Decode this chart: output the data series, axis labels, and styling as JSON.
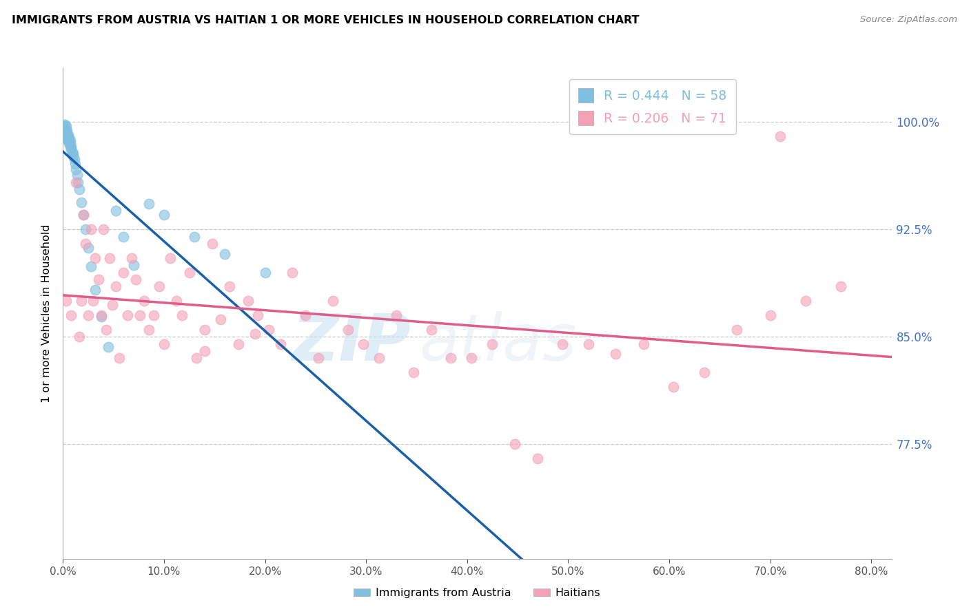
{
  "title": "IMMIGRANTS FROM AUSTRIA VS HAITIAN 1 OR MORE VEHICLES IN HOUSEHOLD CORRELATION CHART",
  "source": "Source: ZipAtlas.com",
  "ylabel": "1 or more Vehicles in Household",
  "legend_austria": "Immigrants from Austria",
  "legend_haitian": "Haitians",
  "r_austria": 0.444,
  "n_austria": 58,
  "r_haitian": 0.206,
  "n_haitian": 71,
  "color_austria": "#7fbfdf",
  "color_haitian": "#f4a0b5",
  "line_color_austria": "#1a5fa8",
  "line_color_haitian": "#e05c8a",
  "tick_color_right": "#4472c4",
  "xlim": [
    0.0,
    0.82
  ],
  "ylim": [
    0.695,
    1.038
  ],
  "ytick_vals": [
    0.775,
    0.85,
    0.925,
    1.0
  ],
  "xtick_vals": [
    0.0,
    0.1,
    0.2,
    0.3,
    0.4,
    0.5,
    0.6,
    0.7,
    0.8
  ],
  "watermark_text": "ZIPatlas",
  "austria_x": [
    0.001,
    0.001,
    0.001,
    0.001,
    0.001,
    0.002,
    0.002,
    0.002,
    0.002,
    0.002,
    0.002,
    0.002,
    0.002,
    0.003,
    0.003,
    0.003,
    0.003,
    0.003,
    0.004,
    0.004,
    0.004,
    0.004,
    0.005,
    0.005,
    0.005,
    0.006,
    0.006,
    0.006,
    0.007,
    0.007,
    0.007,
    0.008,
    0.008,
    0.009,
    0.01,
    0.01,
    0.011,
    0.012,
    0.013,
    0.014,
    0.015,
    0.016,
    0.018,
    0.02,
    0.022,
    0.025,
    0.028,
    0.032,
    0.038,
    0.045,
    0.052,
    0.06,
    0.07,
    0.085,
    0.1,
    0.13,
    0.16,
    0.2
  ],
  "austria_y": [
    0.99,
    0.992,
    0.993,
    0.994,
    0.995,
    0.989,
    0.991,
    0.992,
    0.993,
    0.995,
    0.996,
    0.997,
    0.998,
    0.99,
    0.992,
    0.993,
    0.995,
    0.997,
    0.988,
    0.99,
    0.992,
    0.994,
    0.987,
    0.989,
    0.991,
    0.985,
    0.987,
    0.989,
    0.983,
    0.985,
    0.987,
    0.981,
    0.983,
    0.979,
    0.976,
    0.978,
    0.974,
    0.971,
    0.967,
    0.963,
    0.958,
    0.953,
    0.944,
    0.935,
    0.925,
    0.912,
    0.899,
    0.883,
    0.864,
    0.843,
    0.938,
    0.92,
    0.9,
    0.943,
    0.935,
    0.92,
    0.908,
    0.895
  ],
  "haitian_x": [
    0.003,
    0.008,
    0.013,
    0.016,
    0.018,
    0.02,
    0.022,
    0.025,
    0.028,
    0.03,
    0.032,
    0.035,
    0.038,
    0.04,
    0.043,
    0.046,
    0.049,
    0.052,
    0.056,
    0.06,
    0.064,
    0.068,
    0.072,
    0.076,
    0.08,
    0.085,
    0.09,
    0.095,
    0.1,
    0.106,
    0.112,
    0.118,
    0.125,
    0.132,
    0.14,
    0.148,
    0.156,
    0.165,
    0.174,
    0.183,
    0.193,
    0.204,
    0.215,
    0.227,
    0.24,
    0.253,
    0.267,
    0.282,
    0.297,
    0.313,
    0.33,
    0.347,
    0.365,
    0.384,
    0.404,
    0.425,
    0.447,
    0.47,
    0.494,
    0.52,
    0.547,
    0.575,
    0.604,
    0.635,
    0.667,
    0.7,
    0.735,
    0.77,
    0.14,
    0.19,
    0.71
  ],
  "haitian_y": [
    0.875,
    0.865,
    0.958,
    0.85,
    0.875,
    0.935,
    0.915,
    0.865,
    0.925,
    0.875,
    0.905,
    0.89,
    0.865,
    0.925,
    0.855,
    0.905,
    0.872,
    0.885,
    0.835,
    0.895,
    0.865,
    0.905,
    0.89,
    0.865,
    0.875,
    0.855,
    0.865,
    0.885,
    0.845,
    0.905,
    0.875,
    0.865,
    0.895,
    0.835,
    0.855,
    0.915,
    0.862,
    0.885,
    0.845,
    0.875,
    0.865,
    0.855,
    0.845,
    0.895,
    0.865,
    0.835,
    0.875,
    0.855,
    0.845,
    0.835,
    0.865,
    0.825,
    0.855,
    0.835,
    0.835,
    0.845,
    0.775,
    0.765,
    0.845,
    0.845,
    0.838,
    0.845,
    0.815,
    0.825,
    0.855,
    0.865,
    0.875,
    0.885,
    0.84,
    0.852,
    0.99
  ]
}
